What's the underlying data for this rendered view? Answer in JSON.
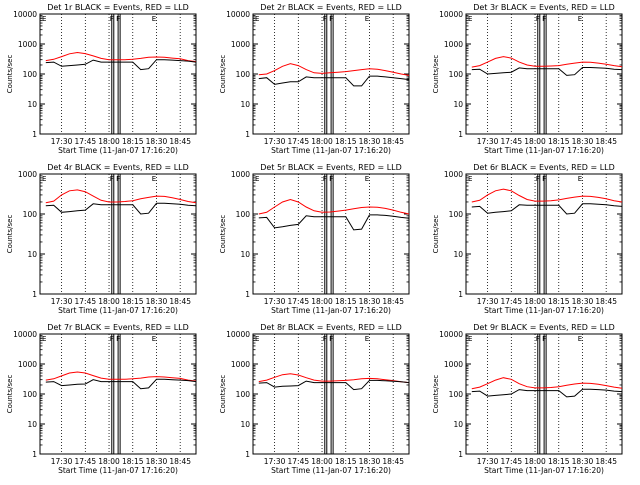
{
  "figure": {
    "background": "#ffffff",
    "axis_color": "#000000",
    "events_color": "#000000",
    "lld_color": "#ff0000"
  },
  "chart_data": [
    {
      "type": "line",
      "title": "Det 1r BLACK = Events, RED = LLD",
      "xlabel": "Start Time (11-Jan-07 17:16:20)",
      "ylabel": "Counts/sec",
      "yscale": "log",
      "ylim": [
        1,
        10000
      ],
      "yticks": [
        "1",
        "10",
        "100",
        "1000",
        "10000"
      ],
      "xlim": [
        "17:16:20",
        "18:55:00"
      ],
      "xticks": [
        "17:30",
        "17:45",
        "18:00",
        "18:15",
        "18:30",
        "18:45"
      ],
      "grid": "vertical dotted",
      "legend_marks": [
        "F",
        "E"
      ],
      "x": [
        "17:20",
        "17:25",
        "17:30",
        "17:35",
        "17:40",
        "17:45",
        "17:50",
        "17:55",
        "18:00",
        "18:05",
        "18:10",
        "18:15",
        "18:20",
        "18:25",
        "18:30",
        "18:35",
        "18:40",
        "18:45",
        "18:50",
        "18:55"
      ],
      "series": [
        {
          "name": "LLD",
          "color": "#ff0000",
          "values": [
            280,
            310,
            380,
            470,
            520,
            480,
            400,
            330,
            300,
            300,
            300,
            310,
            330,
            360,
            370,
            360,
            340,
            320,
            280,
            260
          ]
        },
        {
          "name": "Events",
          "color": "#000000",
          "values": [
            240,
            250,
            180,
            190,
            200,
            210,
            290,
            250,
            250,
            250,
            250,
            250,
            140,
            150,
            300,
            300,
            290,
            280,
            270,
            250
          ]
        }
      ]
    },
    {
      "type": "line",
      "title": "Det 2r BLACK = Events, RED = LLD",
      "xlabel": "Start Time (11-Jan-07 17:16:20)",
      "ylabel": "Counts/sec",
      "yscale": "log",
      "ylim": [
        1,
        10000
      ],
      "yticks": [
        "1",
        "10",
        "100",
        "1000",
        "10000"
      ],
      "xlim": [
        "17:16:20",
        "18:55:00"
      ],
      "xticks": [
        "17:30",
        "17:45",
        "18:00",
        "18:15",
        "18:30",
        "18:45"
      ],
      "grid": "vertical dotted",
      "legend_marks": [
        "F",
        "E"
      ],
      "x": [
        "17:20",
        "17:25",
        "17:30",
        "17:35",
        "17:40",
        "17:45",
        "17:50",
        "17:55",
        "18:00",
        "18:05",
        "18:10",
        "18:15",
        "18:20",
        "18:25",
        "18:30",
        "18:35",
        "18:40",
        "18:45",
        "18:50",
        "18:55"
      ],
      "series": [
        {
          "name": "LLD",
          "color": "#ff0000",
          "values": [
            95,
            100,
            130,
            180,
            220,
            190,
            140,
            110,
            105,
            110,
            115,
            120,
            130,
            140,
            150,
            145,
            130,
            115,
            100,
            90
          ]
        },
        {
          "name": "Events",
          "color": "#000000",
          "values": [
            70,
            75,
            45,
            50,
            55,
            55,
            80,
            75,
            75,
            75,
            75,
            75,
            40,
            40,
            85,
            85,
            80,
            75,
            70,
            65
          ]
        }
      ]
    },
    {
      "type": "line",
      "title": "Det 3r BLACK = Events, RED = LLD",
      "xlabel": "Start Time (11-Jan-07 17:16:20)",
      "ylabel": "Counts/sec",
      "yscale": "log",
      "ylim": [
        1,
        10000
      ],
      "yticks": [
        "1",
        "10",
        "100",
        "1000",
        "10000"
      ],
      "xlim": [
        "17:16:20",
        "18:55:00"
      ],
      "xticks": [
        "17:30",
        "17:45",
        "18:00",
        "18:15",
        "18:30",
        "18:45"
      ],
      "grid": "vertical dotted",
      "legend_marks": [
        "F",
        "E"
      ],
      "x": [
        "17:20",
        "17:25",
        "17:30",
        "17:35",
        "17:40",
        "17:45",
        "17:50",
        "17:55",
        "18:00",
        "18:05",
        "18:10",
        "18:15",
        "18:20",
        "18:25",
        "18:30",
        "18:35",
        "18:40",
        "18:45",
        "18:50",
        "18:55"
      ],
      "series": [
        {
          "name": "LLD",
          "color": "#ff0000",
          "values": [
            170,
            190,
            250,
            330,
            380,
            340,
            250,
            200,
            180,
            180,
            185,
            190,
            210,
            230,
            250,
            245,
            230,
            210,
            190,
            175
          ]
        },
        {
          "name": "Events",
          "color": "#000000",
          "values": [
            140,
            145,
            100,
            105,
            110,
            115,
            160,
            150,
            150,
            150,
            150,
            150,
            90,
            95,
            165,
            165,
            160,
            155,
            145,
            140
          ]
        }
      ]
    },
    {
      "type": "line",
      "title": "Det 4r BLACK = Events, RED = LLD",
      "xlabel": "Start Time (11-Jan-07 17:16:20)",
      "ylabel": "Counts/sec",
      "yscale": "log",
      "ylim": [
        1,
        1000
      ],
      "yticks": [
        "1",
        "10",
        "100",
        "1000"
      ],
      "xlim": [
        "17:16:20",
        "18:55:00"
      ],
      "xticks": [
        "17:30",
        "17:45",
        "18:00",
        "18:15",
        "18:30",
        "18:45"
      ],
      "grid": "vertical dotted",
      "legend_marks": [
        "F",
        "E"
      ],
      "x": [
        "17:20",
        "17:25",
        "17:30",
        "17:35",
        "17:40",
        "17:45",
        "17:50",
        "17:55",
        "18:00",
        "18:05",
        "18:10",
        "18:15",
        "18:20",
        "18:25",
        "18:30",
        "18:35",
        "18:40",
        "18:45",
        "18:50",
        "18:55"
      ],
      "series": [
        {
          "name": "LLD",
          "color": "#ff0000",
          "values": [
            190,
            210,
            300,
            380,
            400,
            360,
            280,
            220,
            200,
            200,
            205,
            215,
            240,
            260,
            280,
            275,
            255,
            230,
            205,
            190
          ]
        },
        {
          "name": "Events",
          "color": "#000000",
          "values": [
            160,
            165,
            110,
            115,
            120,
            125,
            180,
            170,
            170,
            170,
            170,
            170,
            100,
            105,
            185,
            185,
            180,
            175,
            165,
            160
          ]
        }
      ]
    },
    {
      "type": "line",
      "title": "Det 5r BLACK = Events, RED = LLD",
      "xlabel": "Start Time (11-Jan-07 17:16:20)",
      "ylabel": "Counts/sec",
      "yscale": "log",
      "ylim": [
        1,
        1000
      ],
      "yticks": [
        "1",
        "10",
        "100",
        "1000"
      ],
      "xlim": [
        "17:16:20",
        "18:55:00"
      ],
      "xticks": [
        "17:30",
        "17:45",
        "18:00",
        "18:15",
        "18:30",
        "18:45"
      ],
      "grid": "vertical dotted",
      "legend_marks": [
        "F",
        "E"
      ],
      "x": [
        "17:20",
        "17:25",
        "17:30",
        "17:35",
        "17:40",
        "17:45",
        "17:50",
        "17:55",
        "18:00",
        "18:05",
        "18:10",
        "18:15",
        "18:20",
        "18:25",
        "18:30",
        "18:35",
        "18:40",
        "18:45",
        "18:50",
        "18:55"
      ],
      "series": [
        {
          "name": "LLD",
          "color": "#ff0000",
          "values": [
            100,
            110,
            150,
            200,
            230,
            200,
            150,
            120,
            110,
            112,
            118,
            125,
            135,
            145,
            150,
            148,
            138,
            125,
            110,
            100
          ]
        },
        {
          "name": "Events",
          "color": "#000000",
          "values": [
            80,
            82,
            45,
            48,
            52,
            55,
            90,
            85,
            85,
            85,
            85,
            85,
            40,
            42,
            95,
            95,
            92,
            88,
            82,
            78
          ]
        }
      ]
    },
    {
      "type": "line",
      "title": "Det 6r BLACK = Events, RED = LLD",
      "xlabel": "Start Time (11-Jan-07 17:16:20)",
      "ylabel": "Counts/sec",
      "yscale": "log",
      "ylim": [
        1,
        1000
      ],
      "yticks": [
        "1",
        "10",
        "100",
        "1000"
      ],
      "xlim": [
        "17:16:20",
        "18:55:00"
      ],
      "xticks": [
        "17:30",
        "17:45",
        "18:00",
        "18:15",
        "18:30",
        "18:45"
      ],
      "grid": "vertical dotted",
      "legend_marks": [
        "F",
        "E"
      ],
      "x": [
        "17:20",
        "17:25",
        "17:30",
        "17:35",
        "17:40",
        "17:45",
        "17:50",
        "17:55",
        "18:00",
        "18:05",
        "18:10",
        "18:15",
        "18:20",
        "18:25",
        "18:30",
        "18:35",
        "18:40",
        "18:45",
        "18:50",
        "18:55"
      ],
      "series": [
        {
          "name": "LLD",
          "color": "#ff0000",
          "values": [
            200,
            220,
            300,
            380,
            420,
            380,
            290,
            230,
            210,
            210,
            215,
            225,
            245,
            265,
            280,
            275,
            260,
            240,
            215,
            200
          ]
        },
        {
          "name": "Events",
          "color": "#000000",
          "values": [
            150,
            155,
            105,
            110,
            115,
            120,
            170,
            165,
            165,
            165,
            165,
            165,
            100,
            105,
            180,
            180,
            175,
            170,
            160,
            155
          ]
        }
      ]
    },
    {
      "type": "line",
      "title": "Det 7r BLACK = Events, RED = LLD",
      "xlabel": "Start Time (11-Jan-07 17:16:20)",
      "ylabel": "Counts/sec",
      "yscale": "log",
      "ylim": [
        1,
        10000
      ],
      "yticks": [
        "1",
        "10",
        "100",
        "1000",
        "10000"
      ],
      "xlim": [
        "17:16:20",
        "18:55:00"
      ],
      "xticks": [
        "17:30",
        "17:45",
        "18:00",
        "18:15",
        "18:30",
        "18:45"
      ],
      "grid": "vertical dotted",
      "legend_marks": [
        "F",
        "E"
      ],
      "x": [
        "17:20",
        "17:25",
        "17:30",
        "17:35",
        "17:40",
        "17:45",
        "17:50",
        "17:55",
        "18:00",
        "18:05",
        "18:10",
        "18:15",
        "18:20",
        "18:25",
        "18:30",
        "18:35",
        "18:40",
        "18:45",
        "18:50",
        "18:55"
      ],
      "series": [
        {
          "name": "LLD",
          "color": "#ff0000",
          "values": [
            290,
            320,
            400,
            500,
            540,
            500,
            410,
            340,
            310,
            310,
            310,
            320,
            340,
            370,
            380,
            370,
            350,
            330,
            290,
            270
          ]
        },
        {
          "name": "Events",
          "color": "#000000",
          "values": [
            250,
            260,
            190,
            200,
            210,
            215,
            300,
            260,
            260,
            260,
            260,
            260,
            150,
            160,
            310,
            310,
            300,
            290,
            280,
            260
          ]
        }
      ]
    },
    {
      "type": "line",
      "title": "Det 8r BLACK = Events, RED = LLD",
      "xlabel": "Start Time (11-Jan-07 17:16:20)",
      "ylabel": "Counts/sec",
      "yscale": "log",
      "ylim": [
        1,
        10000
      ],
      "yticks": [
        "1",
        "10",
        "100",
        "1000",
        "10000"
      ],
      "xlim": [
        "17:16:20",
        "18:55:00"
      ],
      "xticks": [
        "17:30",
        "17:45",
        "18:00",
        "18:15",
        "18:30",
        "18:45"
      ],
      "grid": "vertical dotted",
      "legend_marks": [
        "F",
        "E"
      ],
      "x": [
        "17:20",
        "17:25",
        "17:30",
        "17:35",
        "17:40",
        "17:45",
        "17:50",
        "17:55",
        "18:00",
        "18:05",
        "18:10",
        "18:15",
        "18:20",
        "18:25",
        "18:30",
        "18:35",
        "18:40",
        "18:45",
        "18:50",
        "18:55"
      ],
      "series": [
        {
          "name": "LLD",
          "color": "#ff0000",
          "values": [
            260,
            290,
            360,
            440,
            470,
            430,
            350,
            290,
            270,
            270,
            275,
            285,
            300,
            320,
            330,
            320,
            300,
            280,
            255,
            240
          ]
        },
        {
          "name": "Events",
          "color": "#000000",
          "values": [
            230,
            240,
            170,
            180,
            185,
            190,
            270,
            240,
            240,
            240,
            240,
            240,
            140,
            150,
            285,
            285,
            275,
            265,
            255,
            240
          ]
        }
      ]
    },
    {
      "type": "line",
      "title": "Det 9r BLACK = Events, RED = LLD",
      "xlabel": "Start Time (11-Jan-07 17:16:20)",
      "ylabel": "Counts/sec",
      "yscale": "log",
      "ylim": [
        1,
        10000
      ],
      "yticks": [
        "1",
        "10",
        "100",
        "1000",
        "10000"
      ],
      "xlim": [
        "17:16:20",
        "18:55:00"
      ],
      "xticks": [
        "17:30",
        "17:45",
        "18:00",
        "18:15",
        "18:30",
        "18:45"
      ],
      "grid": "vertical dotted",
      "legend_marks": [
        "F",
        "E"
      ],
      "x": [
        "17:20",
        "17:25",
        "17:30",
        "17:35",
        "17:40",
        "17:45",
        "17:50",
        "17:55",
        "18:00",
        "18:05",
        "18:10",
        "18:15",
        "18:20",
        "18:25",
        "18:30",
        "18:35",
        "18:40",
        "18:45",
        "18:50",
        "18:55"
      ],
      "series": [
        {
          "name": "LLD",
          "color": "#ff0000",
          "values": [
            150,
            170,
            220,
            290,
            350,
            310,
            220,
            175,
            160,
            160,
            165,
            175,
            195,
            215,
            230,
            225,
            210,
            190,
            170,
            155
          ]
        },
        {
          "name": "Events",
          "color": "#000000",
          "values": [
            120,
            125,
            85,
            90,
            95,
            100,
            140,
            130,
            130,
            130,
            130,
            130,
            80,
            85,
            145,
            145,
            140,
            135,
            125,
            120
          ]
        }
      ]
    }
  ]
}
